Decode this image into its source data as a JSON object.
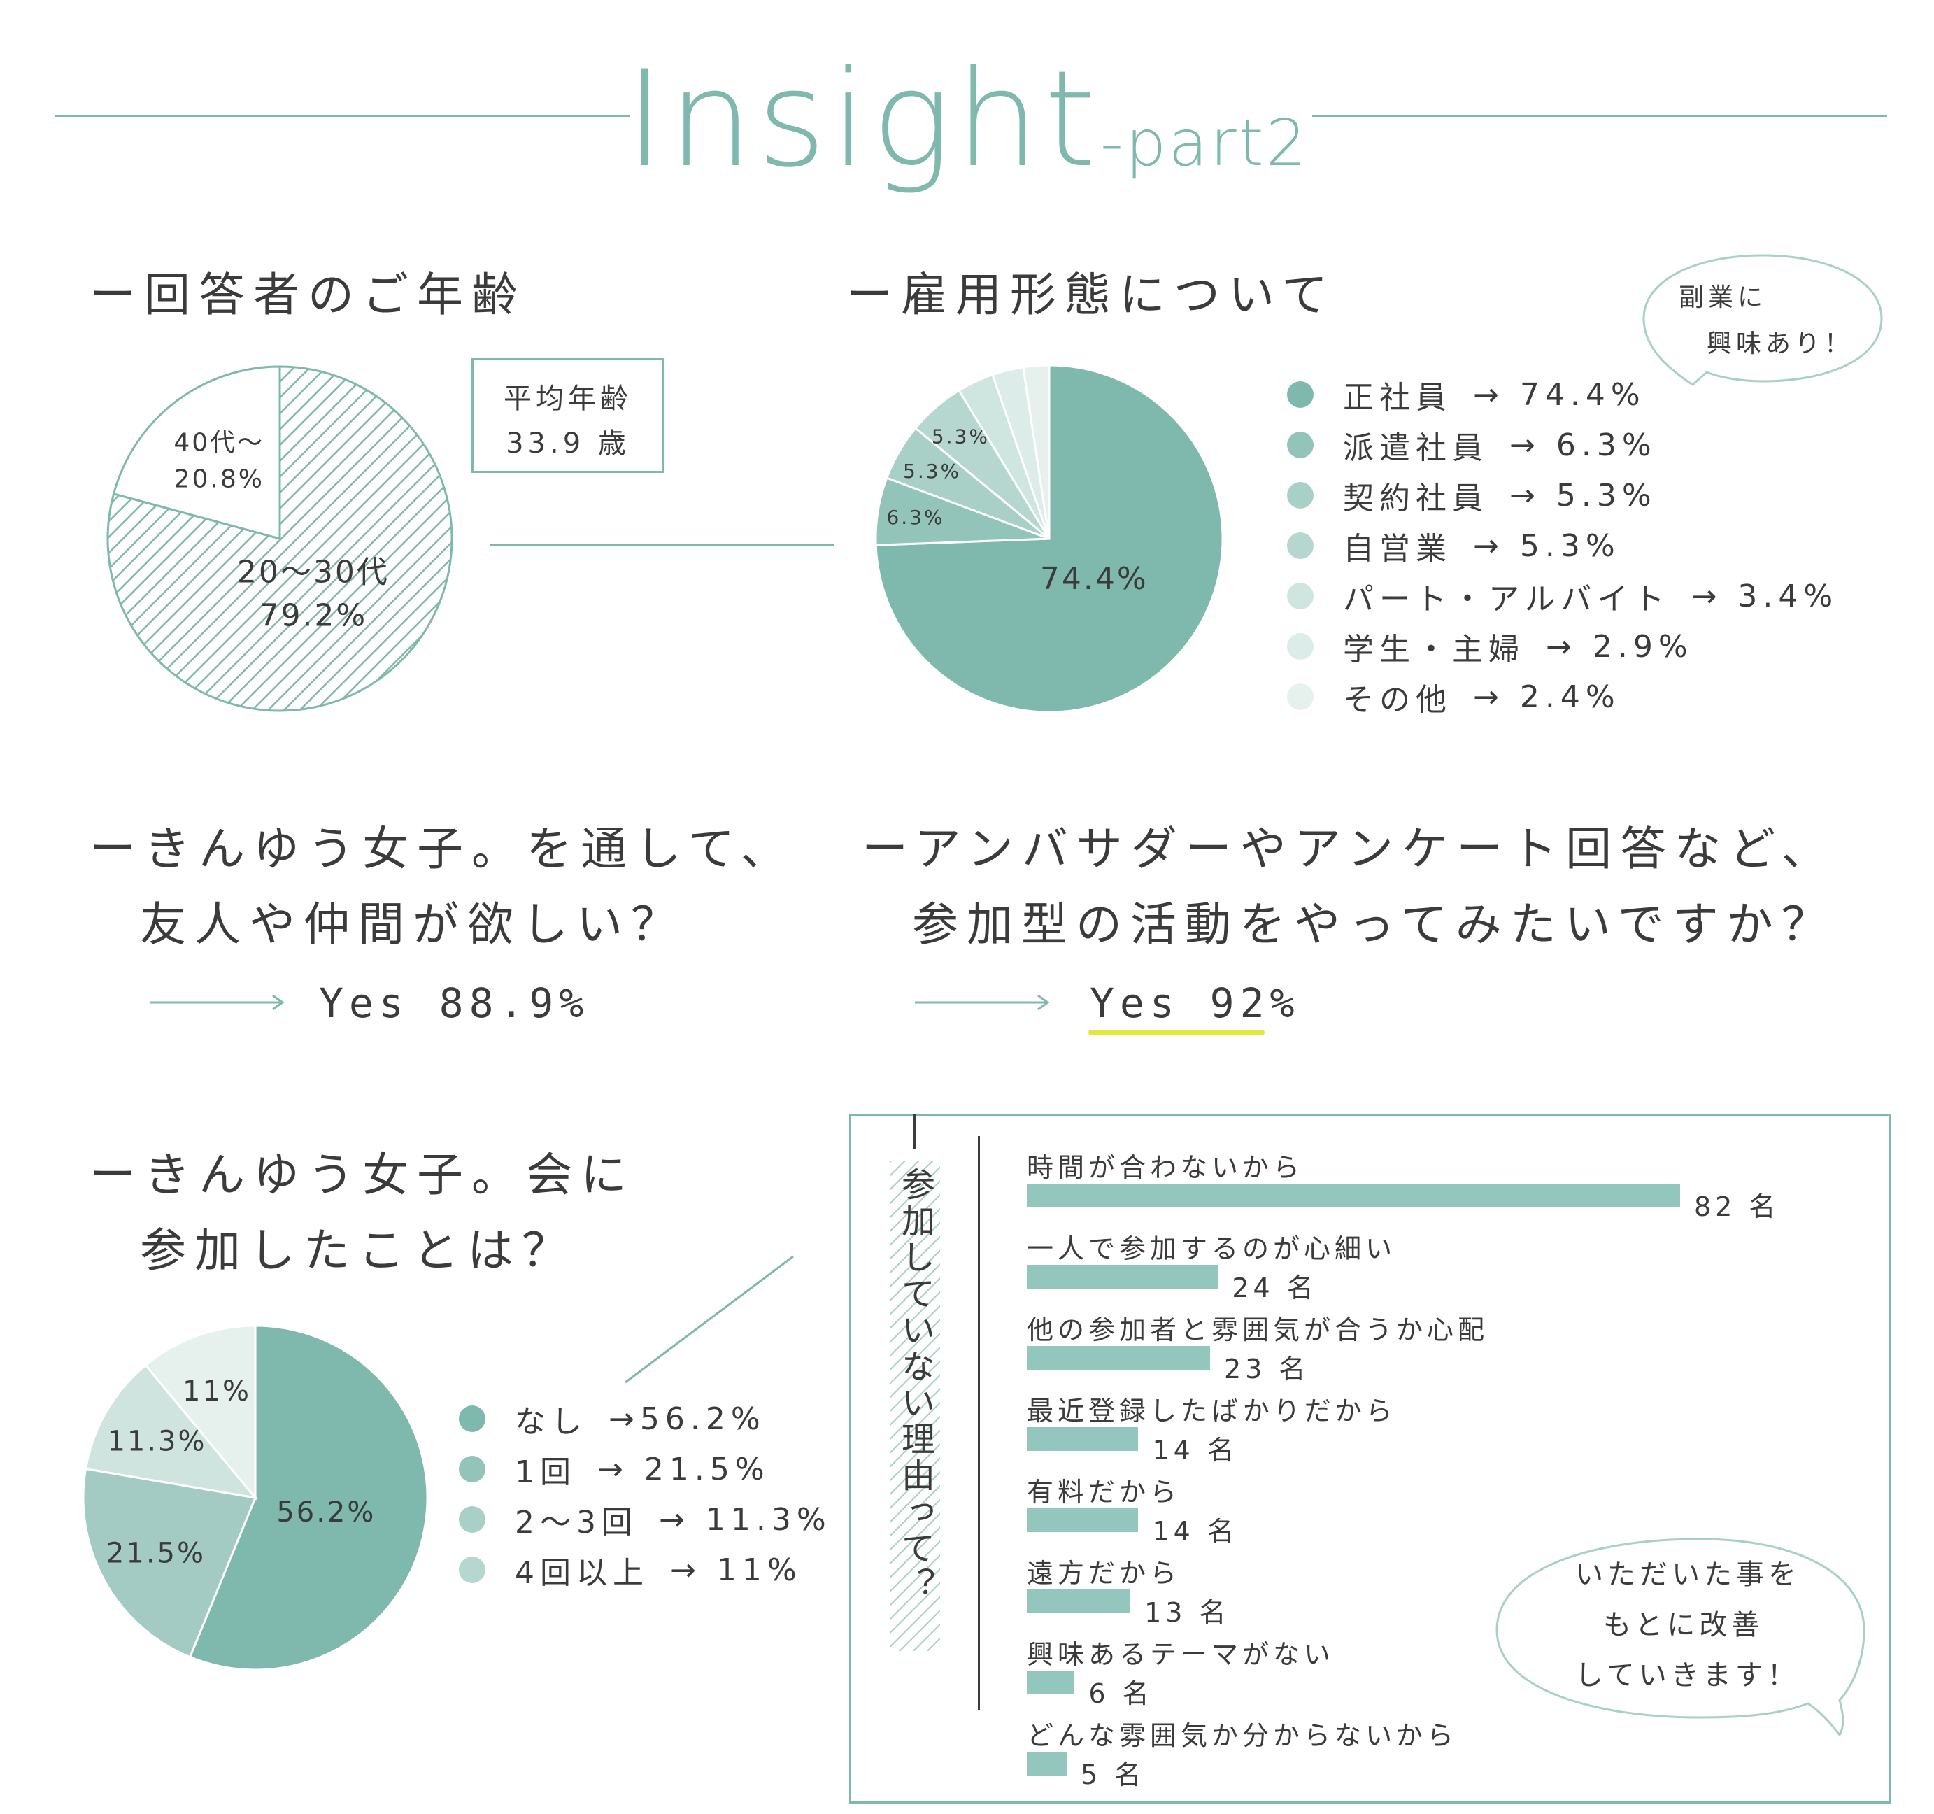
{
  "header": {
    "title_main": "Insight",
    "title_sub": "-part2"
  },
  "colors": {
    "accent": "#7fb8ac",
    "pie_main": "#7fb8ac",
    "highlight": "#e7e63a",
    "employment_slices": [
      "#7fb8ac",
      "#92c4b9",
      "#a8d0c7",
      "#b6d7d0",
      "#cfe5e0",
      "#dcece8",
      "#e6f1ee"
    ],
    "participation_slices": [
      "#7fb8ac",
      "#a3cbc3",
      "#cfe4df",
      "#e6f0ed"
    ]
  },
  "age": {
    "heading": "ー回答者のご年齢",
    "avg_label": "平均年齢",
    "avg_value": "33.9 歳"
  },
  "employment": {
    "heading": "ー雇用形態について",
    "bubble_line1": "副業に",
    "bubble_line2": "興味あり！"
  },
  "friends": {
    "heading_line1": "ーきんゆう女子。を通して、",
    "heading_line2": "友人や仲間が欲しい？",
    "answer": "Yes 88.9%"
  },
  "ambassador": {
    "heading_line1": "ーアンバサダーやアンケート回答など、",
    "heading_line2": "参加型の活動をやってみたいですか？",
    "answer": "Yes 92%"
  },
  "participation": {
    "heading_line1": "ーきんゆう女子。会に",
    "heading_line2": "参加したことは？"
  },
  "reasons": {
    "side_title": "参加していない理由って？",
    "bubble_line1": "いただいた事を",
    "bubble_line2": "もとに改善",
    "bubble_line3": "していきます！"
  },
  "chart_data": [
    {
      "type": "pie",
      "slices": [
        {
          "label": "40代〜",
          "value": 20.8,
          "text": "20.8%"
        },
        {
          "label": "20〜30代",
          "value": 79.2,
          "text": "79.2%"
        }
      ]
    },
    {
      "type": "pie",
      "slices": [
        {
          "label": "正社員",
          "value": 74.4,
          "text": "74.4%",
          "legend": "→ 74.4%",
          "inner": "74.4%"
        },
        {
          "label": "派遣社員",
          "value": 6.3,
          "text": "6.3%",
          "legend": "→ 6.3%",
          "inner": "6.3%"
        },
        {
          "label": "契約社員",
          "value": 5.3,
          "text": "5.3%",
          "legend": "→ 5.3%",
          "inner": "5.3%"
        },
        {
          "label": "自営業",
          "value": 5.3,
          "text": "5.3%",
          "legend": "→ 5.3%",
          "inner": "5.3%"
        },
        {
          "label": "パート・アルバイト",
          "value": 3.4,
          "text": "3.4%",
          "legend": "→  3.4%",
          "inner": ""
        },
        {
          "label": "学生・主婦",
          "value": 2.9,
          "text": "2.9%",
          "legend": "→ 2.9%",
          "inner": ""
        },
        {
          "label": "その他",
          "value": 2.4,
          "text": "2.4%",
          "legend": "→ 2.4%",
          "inner": ""
        }
      ]
    },
    {
      "type": "pie",
      "slices": [
        {
          "label": "なし",
          "value": 56.2,
          "text": "56.2%",
          "legend": "→56.2%"
        },
        {
          "label": "1回",
          "value": 21.5,
          "text": "21.5%",
          "legend": "→ 21.5%"
        },
        {
          "label": "2〜3回",
          "value": 11.3,
          "text": "11.3%",
          "legend": "→ 11.3%"
        },
        {
          "label": "4回以上",
          "value": 11,
          "text": "11%",
          "legend": "→ 11%"
        }
      ]
    },
    {
      "type": "bar",
      "orientation": "horizontal",
      "categories": [
        "時間が合わないから",
        "一人で参加するのが心細い",
        "他の参加者と雰囲気が合うか心配",
        "最近登録したばかりだから",
        "有料だから",
        "遠方だから",
        "興味あるテーマがない",
        "どんな雰囲気か分からないから"
      ],
      "values": [
        82,
        24,
        23,
        14,
        14,
        13,
        6,
        5
      ],
      "value_labels": [
        "82 名",
        "24 名",
        "23 名",
        "14 名",
        "14 名",
        "13 名",
        "6 名",
        "5 名"
      ],
      "xlim": [
        0,
        82
      ]
    }
  ]
}
